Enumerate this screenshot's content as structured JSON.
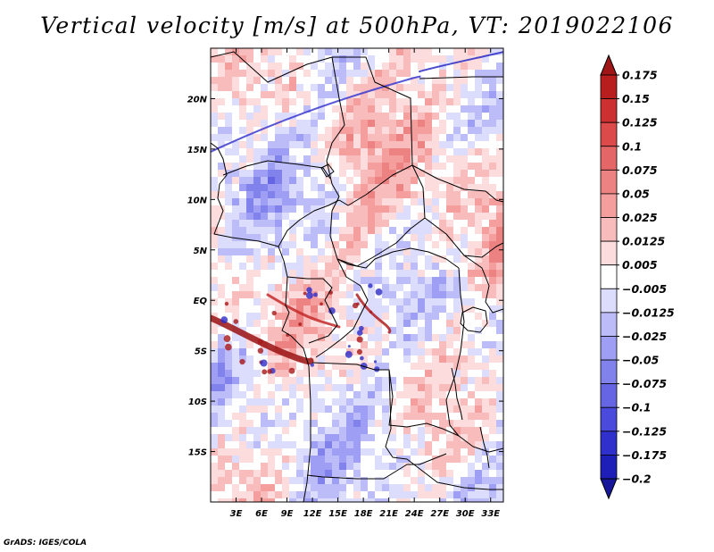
{
  "figure": {
    "title": "Vertical velocity [m/s] at 500hPa, VT: 2019022106",
    "credit": "GrADS: IGES/COLA"
  },
  "map": {
    "lon_range": [
      0,
      34.5
    ],
    "lat_range": [
      -20,
      25
    ],
    "lon_ticks": [
      {
        "value": 3,
        "label": "3E"
      },
      {
        "value": 6,
        "label": "6E"
      },
      {
        "value": 9,
        "label": "9E"
      },
      {
        "value": 12,
        "label": "12E"
      },
      {
        "value": 15,
        "label": "15E"
      },
      {
        "value": 18,
        "label": "18E"
      },
      {
        "value": 21,
        "label": "21E"
      },
      {
        "value": 24,
        "label": "24E"
      },
      {
        "value": 27,
        "label": "27E"
      },
      {
        "value": 30,
        "label": "30E"
      },
      {
        "value": 33,
        "label": "33E"
      }
    ],
    "lat_ticks": [
      {
        "value": 20,
        "label": "20N"
      },
      {
        "value": 15,
        "label": "15N"
      },
      {
        "value": 10,
        "label": "10N"
      },
      {
        "value": 5,
        "label": "5N"
      },
      {
        "value": 0,
        "label": "EQ"
      },
      {
        "value": -5,
        "label": "5S"
      },
      {
        "value": -10,
        "label": "10S"
      },
      {
        "value": -15,
        "label": "15S"
      }
    ]
  },
  "colorbar": {
    "labels": [
      "0.175",
      "0.15",
      "0.125",
      "0.1",
      "0.075",
      "0.05",
      "0.025",
      "0.0125",
      "0.005",
      "−0.005",
      "−0.0125",
      "−0.025",
      "−0.05",
      "−0.075",
      "−0.1",
      "−0.125",
      "−0.175",
      "−0.2"
    ],
    "colors": [
      "#a01616",
      "#b81e1e",
      "#cc3030",
      "#dc4a4a",
      "#e46666",
      "#ec8282",
      "#f49e9e",
      "#f8bcbc",
      "#fcdcdc",
      "#ffffff",
      "#dcdcfc",
      "#bcbcf8",
      "#9e9ef4",
      "#8282ec",
      "#6666e4",
      "#4a4adc",
      "#3030cc",
      "#1e1eb8",
      "#16169a"
    ]
  }
}
